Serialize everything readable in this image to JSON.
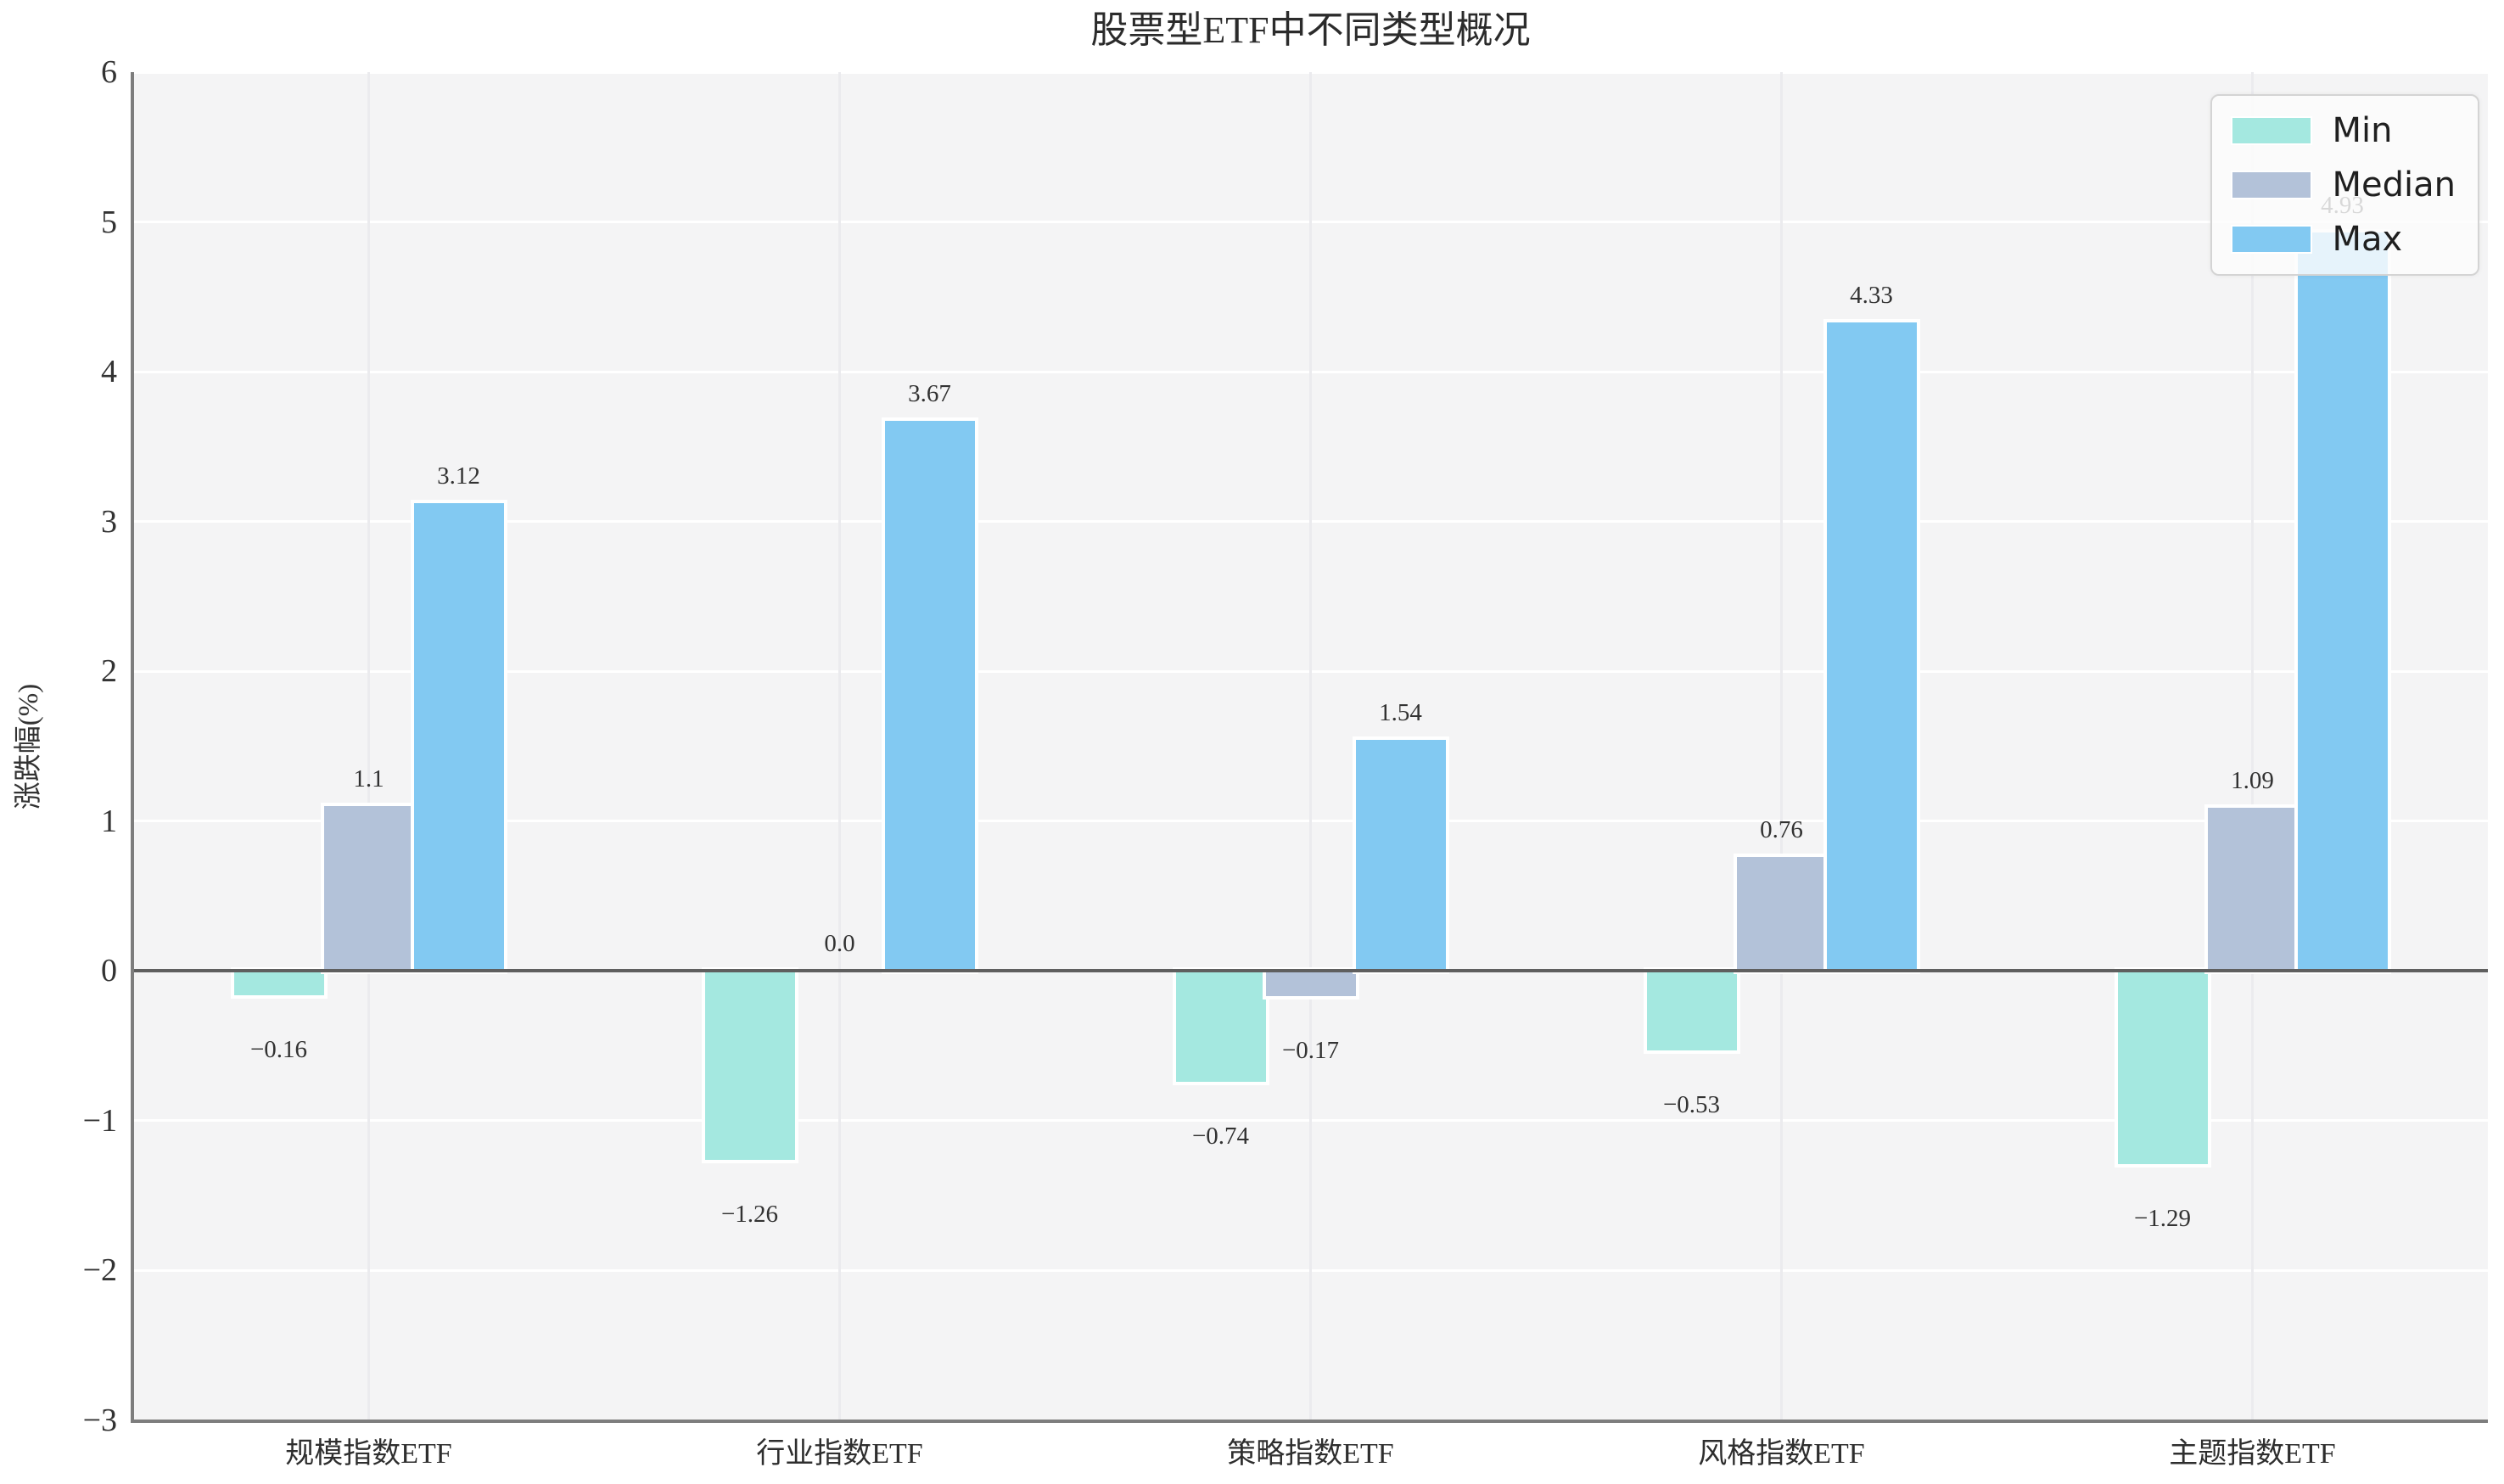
{
  "chart_data": {
    "type": "bar",
    "title": "股票型ETF中不同类型概况",
    "ylabel": "涨跌幅(%)",
    "xlabel": "",
    "ylim": [
      -3,
      6
    ],
    "yticks": [
      6,
      5,
      4,
      3,
      2,
      1,
      0,
      -1,
      -2,
      -3
    ],
    "grid": true,
    "categories": [
      "规模指数ETF",
      "行业指数ETF",
      "策略指数ETF",
      "风格指数ETF",
      "主题指数ETF"
    ],
    "series": [
      {
        "name": "Min",
        "color": "#a4e8e0",
        "values": [
          -0.16,
          -1.26,
          -0.74,
          -0.53,
          -1.29
        ],
        "labels": [
          "-0.16",
          "-1.26",
          "-0.74",
          "-0.53",
          "-1.29"
        ]
      },
      {
        "name": "Median",
        "color": "#b3c2d9",
        "values": [
          1.1,
          0.0,
          -0.17,
          0.76,
          1.09
        ],
        "labels": [
          "1.1",
          "0.0",
          "-0.17",
          "0.76",
          "1.09"
        ]
      },
      {
        "name": "Max",
        "color": "#82c9f2",
        "values": [
          3.12,
          3.67,
          1.54,
          4.33,
          4.93
        ],
        "labels": [
          "3.12",
          "3.67",
          "1.54",
          "4.33",
          "4.93"
        ]
      }
    ],
    "legend": {
      "position": "upper right",
      "entries": [
        "Min",
        "Median",
        "Max"
      ]
    },
    "colors": {
      "plot_background": "#f4f4f5",
      "figure_background": "#ffffff",
      "gridline_horizontal": "#ffffff",
      "gridline_vertical": "#ebebee",
      "zero_line": "#5f5f5f",
      "spine": "#7d7d7d"
    }
  }
}
